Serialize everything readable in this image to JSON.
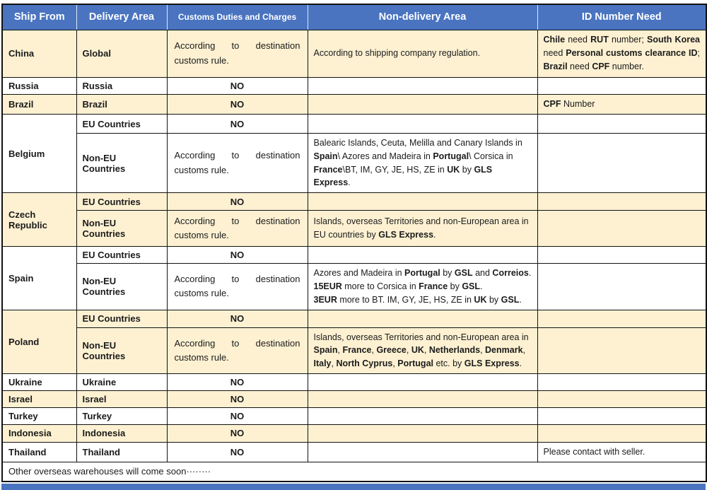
{
  "colors": {
    "header_blue": "#4a74c0",
    "row_cream": "#fdf1d2",
    "border_black": "#121212"
  },
  "table": {
    "headers": [
      "Ship From",
      "Delivery Area",
      "Customs Duties and Charges",
      "Non-delivery Area",
      "ID Number Need"
    ]
  },
  "labels": {
    "no": "NO",
    "eu": "EU Countries",
    "non_eu": "Non-EU Countries",
    "customs_rule": "According to destination customs rule."
  },
  "rows": {
    "china": {
      "ship_from": "China",
      "delivery_area": "Global",
      "non_delivery": "According to shipping company regulation.",
      "id_number": [
        {
          "t": "Chile",
          "b": 1
        },
        {
          "t": " need "
        },
        {
          "t": "RUT",
          "b": 1
        },
        {
          "t": " number; "
        },
        {
          "t": "South Korea",
          "b": 1
        },
        {
          "t": " need "
        },
        {
          "t": "Personal customs clearance ID",
          "b": 1
        },
        {
          "t": "; "
        },
        {
          "t": "Brazil",
          "b": 1
        },
        {
          "t": " need "
        },
        {
          "t": "CPF",
          "b": 1
        },
        {
          "t": " number."
        }
      ]
    },
    "russia": {
      "ship_from": "Russia",
      "delivery_area": "Russia"
    },
    "brazil": {
      "ship_from": "Brazil",
      "delivery_area": "Brazil",
      "id_number": [
        {
          "t": "CPF",
          "b": 1
        },
        {
          "t": " Number"
        }
      ]
    },
    "belgium": {
      "ship_from": "Belgium",
      "non_delivery": [
        {
          "t": "Balearic Islands, Ceuta, Melilla and Canary Islands in "
        },
        {
          "t": "Spain",
          "b": 1
        },
        {
          "t": "\\ Azores and Madeira in "
        },
        {
          "t": "Portugal",
          "b": 1
        },
        {
          "t": "\\ Corsica in "
        },
        {
          "t": "France",
          "b": 1
        },
        {
          "t": "\\BT, IM, GY, JE, HS, ZE in "
        },
        {
          "t": "UK",
          "b": 1
        },
        {
          "t": " by "
        },
        {
          "t": "GLS Express",
          "b": 1
        },
        {
          "t": "."
        }
      ]
    },
    "czech": {
      "ship_from": "Czech Republic",
      "non_delivery": [
        {
          "t": "Islands, overseas Territories and non-European area in EU countries by "
        },
        {
          "t": "GLS Express",
          "b": 1
        },
        {
          "t": "."
        }
      ]
    },
    "spain": {
      "ship_from": "Spain",
      "non_delivery": [
        {
          "t": "Azores and Madeira in "
        },
        {
          "t": "Portugal",
          "b": 1
        },
        {
          "t": " by "
        },
        {
          "t": "GSL",
          "b": 1
        },
        {
          "t": " and "
        },
        {
          "t": "Correios",
          "b": 1
        },
        {
          "t": ".\n"
        },
        {
          "t": "15EUR",
          "b": 1
        },
        {
          "t": " more to Corsica in "
        },
        {
          "t": "France",
          "b": 1
        },
        {
          "t": " by "
        },
        {
          "t": "GSL",
          "b": 1
        },
        {
          "t": ".\n"
        },
        {
          "t": "3EUR",
          "b": 1
        },
        {
          "t": " more to BT. IM, GY, JE, HS, ZE in "
        },
        {
          "t": "UK",
          "b": 1
        },
        {
          "t": " by "
        },
        {
          "t": "GSL",
          "b": 1
        },
        {
          "t": "."
        }
      ]
    },
    "poland": {
      "ship_from": "Poland",
      "non_delivery": [
        {
          "t": "Islands, overseas Territories and non-European area in "
        },
        {
          "t": "Spain",
          "b": 1
        },
        {
          "t": ", "
        },
        {
          "t": "France",
          "b": 1
        },
        {
          "t": ", "
        },
        {
          "t": "Greece",
          "b": 1
        },
        {
          "t": ", "
        },
        {
          "t": "UK",
          "b": 1
        },
        {
          "t": ", "
        },
        {
          "t": "Netherlands",
          "b": 1
        },
        {
          "t": ", "
        },
        {
          "t": "Denmark",
          "b": 1
        },
        {
          "t": ", "
        },
        {
          "t": "Italy",
          "b": 1
        },
        {
          "t": ", "
        },
        {
          "t": "North Cyprus",
          "b": 1
        },
        {
          "t": ", "
        },
        {
          "t": "Portugal",
          "b": 1
        },
        {
          "t": " etc. by "
        },
        {
          "t": "GLS Express",
          "b": 1
        },
        {
          "t": "."
        }
      ]
    },
    "ukraine": {
      "ship_from": "Ukraine",
      "delivery_area": "Ukraine"
    },
    "israel": {
      "ship_from": "Israel",
      "delivery_area": "Israel"
    },
    "turkey": {
      "ship_from": "Turkey",
      "delivery_area": "Turkey"
    },
    "indonesia": {
      "ship_from": "Indonesia",
      "delivery_area": "Indonesia"
    },
    "thailand": {
      "ship_from": "Thailand",
      "delivery_area": "Thailand",
      "id_number": "Please contact with seller."
    }
  },
  "footer": {
    "text": "Other overseas warehouses will come soon········"
  }
}
